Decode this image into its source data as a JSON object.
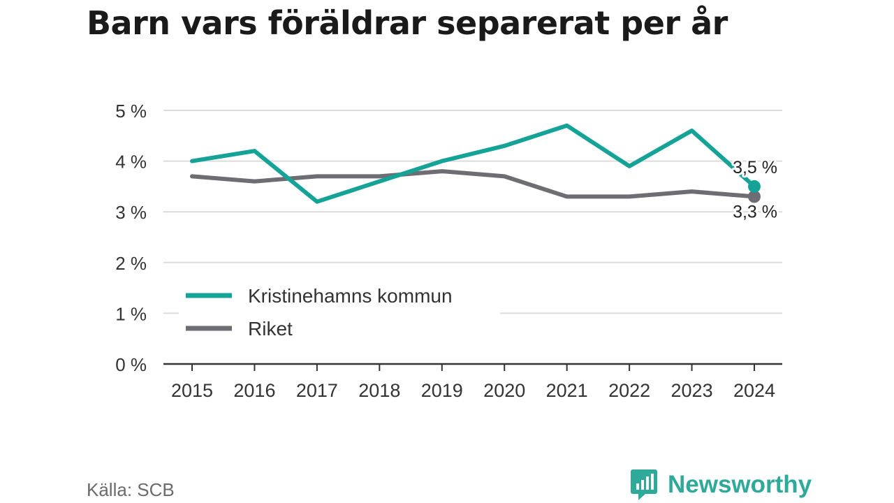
{
  "title": "Barn vars föräldrar separerat per år",
  "source": "Källa: SCB",
  "brand": {
    "name": "Newsworthy",
    "icon": "newsworthy-logo-icon"
  },
  "colors": {
    "kommun": "#14a396",
    "riket": "#6e6d73",
    "grid": "#dcdcdc",
    "axis": "#333333",
    "text": "#333333"
  },
  "chart_data": {
    "type": "line",
    "title": "Barn vars föräldrar separerat per år",
    "xlabel": "",
    "ylabel": "",
    "x": [
      "2015",
      "2016",
      "2017",
      "2018",
      "2019",
      "2020",
      "2021",
      "2022",
      "2023",
      "2024"
    ],
    "ylim": [
      0,
      5
    ],
    "yticks": [
      0,
      1,
      2,
      3,
      4,
      5
    ],
    "ytick_labels": [
      "0 %",
      "1 %",
      "2 %",
      "3 %",
      "4 %",
      "5 %"
    ],
    "grid": true,
    "legend_position": "bottom-left",
    "series": [
      {
        "name": "Kristinehamns kommun",
        "values": [
          4.0,
          4.2,
          3.2,
          3.6,
          4.0,
          4.3,
          4.7,
          3.9,
          4.6,
          3.5
        ],
        "end_label": "3,5 %"
      },
      {
        "name": "Riket",
        "values": [
          3.7,
          3.6,
          3.7,
          3.7,
          3.8,
          3.7,
          3.3,
          3.3,
          3.4,
          3.3
        ],
        "end_label": "3,3 %"
      }
    ]
  }
}
